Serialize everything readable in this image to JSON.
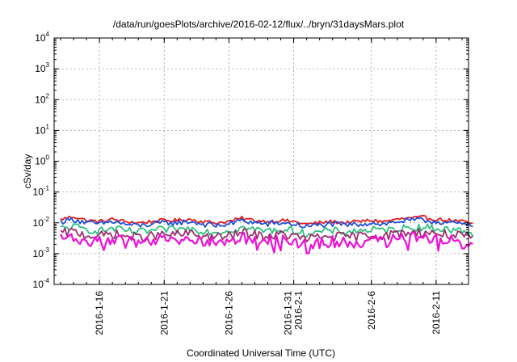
{
  "chart_data": {
    "type": "line",
    "title": "/data/run/goesPlots/archive/2016-02-12/flux/../bryn/31daysMars.plot",
    "xlabel": "Coordinated Universal Time (UTC)",
    "ylabel": "cSv/day",
    "y_scale": "log",
    "ylim": [
      0.0001,
      10000
    ],
    "xlim": [
      "2016-01-12T12:00",
      "2016-02-13T12:00"
    ],
    "grid": true,
    "y_tick_labels": [
      {
        "base": "10",
        "exp": "-4",
        "value": 0.0001
      },
      {
        "base": "10",
        "exp": "-3",
        "value": 0.001
      },
      {
        "base": "10",
        "exp": "-2",
        "value": 0.01
      },
      {
        "base": "10",
        "exp": "-1",
        "value": 0.1
      },
      {
        "base": "10",
        "exp": "0",
        "value": 1
      },
      {
        "base": "10",
        "exp": "1",
        "value": 10
      },
      {
        "base": "10",
        "exp": "2",
        "value": 100
      },
      {
        "base": "10",
        "exp": "3",
        "value": 1000
      },
      {
        "base": "10",
        "exp": "4",
        "value": 10000
      }
    ],
    "x_tick_labels": [
      {
        "date": "2016-01-16",
        "lines": [
          "2016-1-16"
        ]
      },
      {
        "date": "2016-01-21",
        "lines": [
          "2016-1-21"
        ]
      },
      {
        "date": "2016-01-26",
        "lines": [
          "2016-1-26"
        ]
      },
      {
        "date": "2016-01-31",
        "lines": [
          "2016-1-31",
          "2016-2-1"
        ]
      },
      {
        "date": "2016-02-06",
        "lines": [
          "2016-2-6"
        ]
      },
      {
        "date": "2016-02-11",
        "lines": [
          "2016-2-11"
        ]
      }
    ],
    "series": [
      {
        "color": "#e41a1c",
        "values": [
          0.013,
          0.016,
          0.012,
          0.011,
          0.013,
          0.011,
          0.01,
          0.011,
          0.012,
          0.012,
          0.013,
          0.011,
          0.01,
          0.011,
          0.014,
          0.012,
          0.011,
          0.012,
          0.011,
          0.009,
          0.01,
          0.011,
          0.01,
          0.011,
          0.012,
          0.011,
          0.013,
          0.014,
          0.015,
          0.013,
          0.012,
          0.011,
          0.009
        ]
      },
      {
        "color": "#1f4fe0",
        "values": [
          0.011,
          0.013,
          0.01,
          0.009,
          0.011,
          0.009,
          0.008,
          0.009,
          0.01,
          0.01,
          0.011,
          0.009,
          0.008,
          0.009,
          0.012,
          0.01,
          0.009,
          0.01,
          0.009,
          0.0075,
          0.0085,
          0.009,
          0.0085,
          0.009,
          0.01,
          0.009,
          0.011,
          0.012,
          0.012,
          0.011,
          0.01,
          0.009,
          0.0075
        ]
      },
      {
        "color": "#2ec27e",
        "values": [
          0.0065,
          0.0075,
          0.006,
          0.0055,
          0.0065,
          0.0055,
          0.005,
          0.0055,
          0.006,
          0.006,
          0.0065,
          0.0055,
          0.005,
          0.0055,
          0.007,
          0.006,
          0.0055,
          0.006,
          0.0055,
          0.0045,
          0.005,
          0.0055,
          0.005,
          0.0055,
          0.006,
          0.0055,
          0.0065,
          0.007,
          0.0072,
          0.0065,
          0.006,
          0.0055,
          0.0045
        ]
      },
      {
        "color": "#9b2f6e",
        "values": [
          0.0045,
          0.0052,
          0.004,
          0.0037,
          0.0045,
          0.0037,
          0.0033,
          0.0037,
          0.0041,
          0.0041,
          0.0045,
          0.0037,
          0.0034,
          0.0037,
          0.0048,
          0.0041,
          0.0037,
          0.0041,
          0.0037,
          0.003,
          0.0034,
          0.0037,
          0.0034,
          0.0037,
          0.0041,
          0.0037,
          0.0045,
          0.0048,
          0.005,
          0.0045,
          0.0041,
          0.0037,
          0.003
        ]
      },
      {
        "color": "#ee10d8",
        "values": [
          0.0032,
          0.0036,
          0.0027,
          0.0024,
          0.0031,
          0.0025,
          0.0021,
          0.0024,
          0.0028,
          0.0028,
          0.0031,
          0.0025,
          0.0022,
          0.0025,
          0.0034,
          0.0028,
          0.0025,
          0.0028,
          0.0025,
          0.0019,
          0.0022,
          0.0025,
          0.0022,
          0.0025,
          0.0028,
          0.0025,
          0.0031,
          0.0034,
          0.0035,
          0.0031,
          0.0028,
          0.0025,
          0.0019
        ]
      }
    ]
  }
}
